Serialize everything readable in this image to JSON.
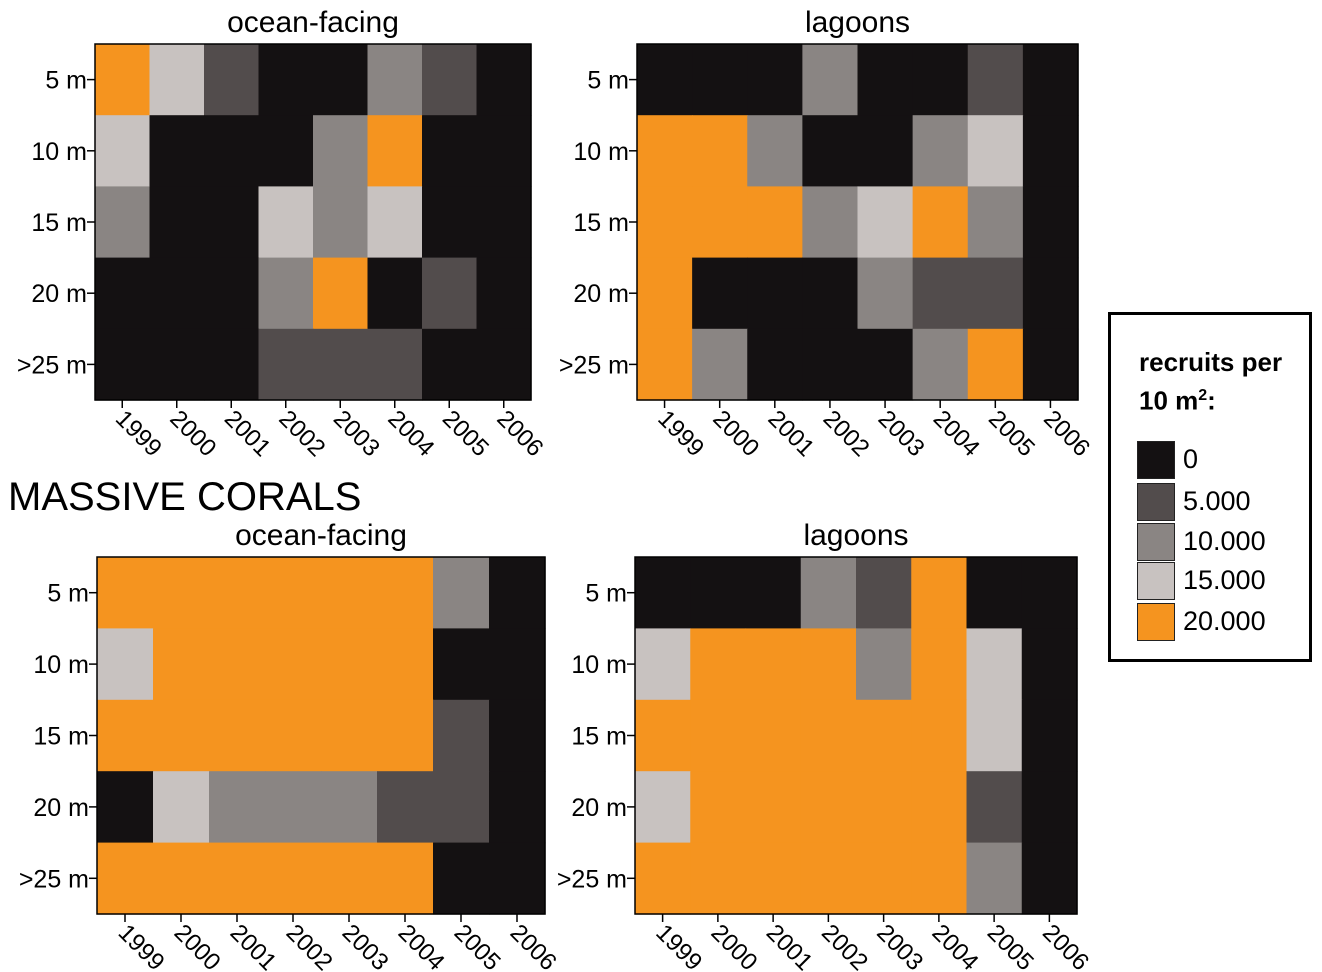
{
  "section_title": "MASSIVE CORALS",
  "legend": {
    "title_line1": "recruits per",
    "title_line2_prefix": "10 m",
    "title_line2_sup": "2",
    "title_line2_suffix": ":",
    "items": [
      {
        "label": "0",
        "value": 0,
        "color": "#141112"
      },
      {
        "label": "5.000",
        "value": 5000,
        "color": "#524c4c"
      },
      {
        "label": "10.000",
        "value": 10000,
        "color": "#8a8583"
      },
      {
        "label": "15.000",
        "value": 15000,
        "color": "#c8c2c0"
      },
      {
        "label": "20.000",
        "value": 20000,
        "color": "#f5941f"
      }
    ]
  },
  "chart_data": [
    {
      "type": "heatmap",
      "title": "ocean-facing",
      "x": [
        "1999",
        "2000",
        "2001",
        "2002",
        "2003",
        "2004",
        "2005",
        "2006"
      ],
      "y": [
        "5 m",
        "10 m",
        "15 m",
        "20 m",
        ">25 m"
      ],
      "values": [
        [
          20000,
          15000,
          5000,
          0,
          0,
          10000,
          5000,
          0
        ],
        [
          15000,
          0,
          0,
          0,
          10000,
          20000,
          0,
          0
        ],
        [
          10000,
          0,
          0,
          15000,
          10000,
          15000,
          0,
          0
        ],
        [
          0,
          0,
          0,
          10000,
          20000,
          0,
          5000,
          0
        ],
        [
          0,
          0,
          0,
          5000,
          5000,
          5000,
          0,
          0
        ]
      ]
    },
    {
      "type": "heatmap",
      "title": "lagoons",
      "x": [
        "1999",
        "2000",
        "2001",
        "2002",
        "2003",
        "2004",
        "2005",
        "2006"
      ],
      "y": [
        "5 m",
        "10 m",
        "15 m",
        "20 m",
        ">25 m"
      ],
      "values": [
        [
          0,
          0,
          0,
          10000,
          0,
          0,
          5000,
          0
        ],
        [
          20000,
          20000,
          10000,
          0,
          0,
          10000,
          15000,
          0
        ],
        [
          20000,
          20000,
          20000,
          10000,
          15000,
          20000,
          10000,
          0
        ],
        [
          20000,
          0,
          0,
          0,
          10000,
          5000,
          5000,
          0
        ],
        [
          20000,
          10000,
          0,
          0,
          0,
          10000,
          20000,
          0
        ]
      ]
    },
    {
      "type": "heatmap",
      "title": "ocean-facing",
      "x": [
        "1999",
        "2000",
        "2001",
        "2002",
        "2003",
        "2004",
        "2005",
        "2006"
      ],
      "y": [
        "5 m",
        "10 m",
        "15 m",
        "20 m",
        ">25 m"
      ],
      "values": [
        [
          20000,
          20000,
          20000,
          20000,
          20000,
          20000,
          10000,
          0
        ],
        [
          15000,
          20000,
          20000,
          20000,
          20000,
          20000,
          0,
          0
        ],
        [
          20000,
          20000,
          20000,
          20000,
          20000,
          20000,
          5000,
          0
        ],
        [
          0,
          15000,
          10000,
          10000,
          10000,
          5000,
          5000,
          0
        ],
        [
          20000,
          20000,
          20000,
          20000,
          20000,
          20000,
          0,
          0
        ]
      ]
    },
    {
      "type": "heatmap",
      "title": "lagoons",
      "x": [
        "1999",
        "2000",
        "2001",
        "2002",
        "2003",
        "2004",
        "2005",
        "2006"
      ],
      "y": [
        "5 m",
        "10 m",
        "15 m",
        "20 m",
        ">25 m"
      ],
      "values": [
        [
          0,
          0,
          0,
          10000,
          5000,
          20000,
          0,
          0
        ],
        [
          15000,
          20000,
          20000,
          20000,
          10000,
          20000,
          15000,
          0
        ],
        [
          20000,
          20000,
          20000,
          20000,
          20000,
          20000,
          15000,
          0
        ],
        [
          15000,
          20000,
          20000,
          20000,
          20000,
          20000,
          5000,
          0
        ],
        [
          20000,
          20000,
          20000,
          20000,
          20000,
          20000,
          10000,
          0
        ]
      ]
    }
  ]
}
